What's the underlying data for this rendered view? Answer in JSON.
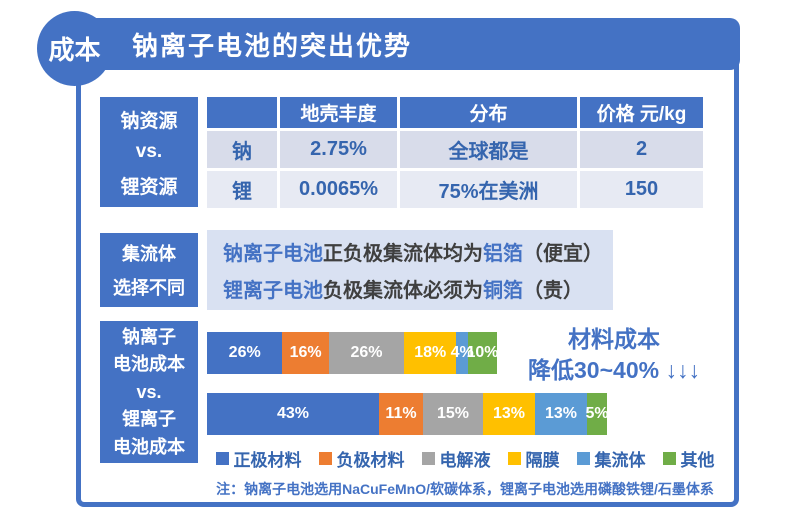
{
  "title": {
    "badge": "成本",
    "text": "钠离子电池的突出优势"
  },
  "palette": {
    "primary_blue": "#4472C4",
    "table_text_blue": "#3565ae",
    "row1_bg": "#d8dcea",
    "row2_bg": "#e7eaf3",
    "panel_bg": "#d9e1f2",
    "dark_text": "#3f3f3f"
  },
  "resource_section": {
    "label_lines": [
      "钠资源",
      "vs.",
      "锂资源"
    ],
    "table": {
      "headers": [
        "",
        "地壳丰度",
        "分布",
        "价格 元/kg"
      ],
      "rows": [
        [
          "钠",
          "2.75%",
          "全球都是",
          "2"
        ],
        [
          "锂",
          "0.0065%",
          "75%在美洲",
          "150"
        ]
      ]
    }
  },
  "collector_section": {
    "label_lines": [
      "集流体",
      "选择不同"
    ],
    "lines": [
      {
        "segments": [
          {
            "text": "钠离子电池",
            "em": true
          },
          {
            "text": "正负极集流体均为",
            "em": false
          },
          {
            "text": "铝箔",
            "em": true
          },
          {
            "text": "（便宜）",
            "em": false
          }
        ]
      },
      {
        "segments": [
          {
            "text": "锂离子电池",
            "em": true
          },
          {
            "text": "负极集流体必须为",
            "em": false
          },
          {
            "text": "铜箔",
            "em": true
          },
          {
            "text": "（贵）",
            "em": false
          }
        ]
      }
    ]
  },
  "cost_section": {
    "label_lines": [
      "钠离子",
      "电池成本",
      "vs.",
      "锂离子",
      "电池成本"
    ],
    "annotation_lines": [
      "材料成本",
      "降低30~40% ↓↓↓"
    ],
    "note": "注：钠离子电池选用NaCuFeMnO/软碳体系，锂离子电池选用磷酸铁锂/石墨体系"
  },
  "chart_data": [
    {
      "type": "table",
      "title": "钠资源 vs. 锂资源",
      "columns": [
        "",
        "地壳丰度",
        "分布",
        "价格 元/kg"
      ],
      "rows": [
        [
          "钠",
          "2.75%",
          "全球都是",
          "2"
        ],
        [
          "锂",
          "0.0065%",
          "75%在美洲",
          "150"
        ]
      ]
    },
    {
      "type": "bar",
      "subtype": "horizontal-stacked",
      "title": "钠离子电池成本 vs. 锂离子电池成本",
      "categories": [
        "钠离子电池成本",
        "锂离子电池成本"
      ],
      "series": [
        {
          "name": "正极材料",
          "values": [
            26,
            43
          ],
          "color": "#4472C4"
        },
        {
          "name": "负极材料",
          "values": [
            16,
            11
          ],
          "color": "#ED7D31"
        },
        {
          "name": "电解液",
          "values": [
            26,
            15
          ],
          "color": "#A5A5A5"
        },
        {
          "name": "隔膜",
          "values": [
            18,
            13
          ],
          "color": "#FFC000"
        },
        {
          "name": "集流体",
          "values": [
            4,
            13
          ],
          "color": "#5B9BD5"
        },
        {
          "name": "其他",
          "values": [
            10,
            5
          ],
          "color": "#70AD47"
        }
      ],
      "unit": "%",
      "bar_relative_lengths": [
        0.725,
        1.0
      ],
      "annotation": "材料成本 降低30~40% ↓↓↓",
      "legend_position": "bottom",
      "grid": false
    }
  ]
}
